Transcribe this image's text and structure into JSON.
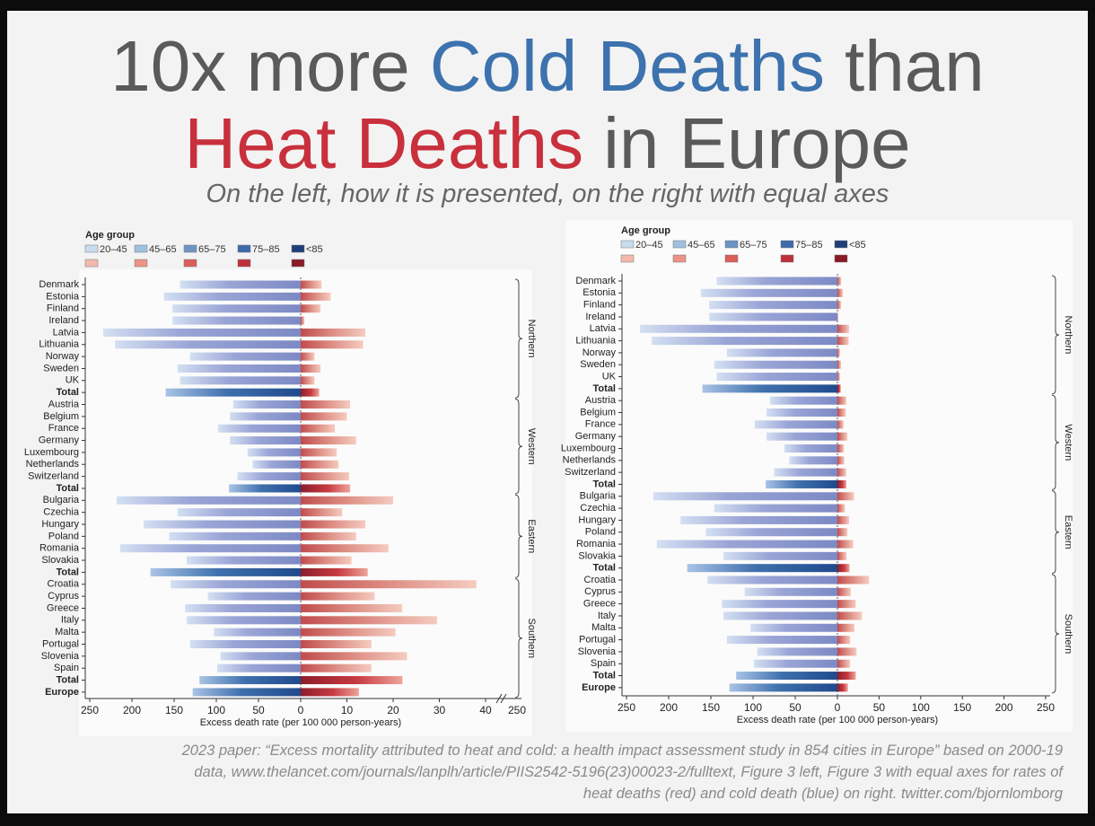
{
  "header": {
    "title_line1": [
      "10x more",
      "Cold Deaths",
      "than"
    ],
    "title_line2": [
      "Heat Deaths",
      "in Europe"
    ],
    "subtitle": "On the left, how it is presented, on the right with equal axes"
  },
  "footer": {
    "lines": [
      "2023 paper: “Excess mortality attributed to heat and cold: a health impact assessment study in 854 cities in Europe” based on 2000-19",
      "data, www.thelancet.com/journals/lanplh/article/PIIS2542-5196(23)00023-2/fulltext, Figure 3 left, Figure 3 with equal axes for rates of",
      "heat deaths (red) and cold death (blue) on right. twitter.com/bjornlomborg"
    ]
  },
  "chart_data": [
    {
      "type": "diverging_bar",
      "legend_title": "Age group",
      "legend_labels": [
        "20–45",
        "45–65",
        "65–75",
        "75–85",
        "<85"
      ],
      "legend_colors_cold": [
        "#c9dcef",
        "#9fc0e0",
        "#6d94c4",
        "#3d6bab",
        "#1f3f7a"
      ],
      "legend_colors_heat": [
        "#f4b9ad",
        "#ec9385",
        "#dc5d5a",
        "#c0303a",
        "#8a1a26"
      ],
      "categories": [
        "Denmark",
        "Estonia",
        "Finland",
        "Ireland",
        "Latvia",
        "Lithuania",
        "Norway",
        "Sweden",
        "UK",
        "Total",
        "Austria",
        "Belgium",
        "France",
        "Germany",
        "Luxembourg",
        "Netherlands",
        "Switzerland",
        "Total",
        "Bulgaria",
        "Czechia",
        "Hungary",
        "Poland",
        "Romania",
        "Slovakia",
        "Total",
        "Croatia",
        "Cyprus",
        "Greece",
        "Italy",
        "Malta",
        "Portugal",
        "Slovenia",
        "Spain",
        "Total",
        "Europe"
      ],
      "cold": [
        143,
        162,
        152,
        152,
        234,
        220,
        131,
        146,
        143,
        160,
        80,
        84,
        98,
        84,
        63,
        57,
        75,
        85,
        218,
        146,
        186,
        156,
        214,
        135,
        178,
        154,
        110,
        137,
        135,
        103,
        131,
        95,
        99,
        120,
        128
      ],
      "heat": [
        4.5,
        6.5,
        4.3,
        0.8,
        14,
        13.5,
        3,
        4.3,
        3,
        4,
        10.7,
        10,
        7.4,
        12,
        7.8,
        8.2,
        10.5,
        10.7,
        20,
        9,
        14,
        12,
        19,
        11,
        14.5,
        38,
        16,
        22,
        29.5,
        20.5,
        15.3,
        23,
        15.3,
        22,
        12.6
      ],
      "cold_xlim": [
        250,
        0
      ],
      "cold_xticks": [
        250,
        200,
        150,
        100,
        50,
        0
      ],
      "heat_xlim": [
        0,
        40
      ],
      "heat_xticks": [
        10,
        20,
        30,
        40
      ],
      "break_tick": 250,
      "xlabel": "Excess death rate (per 100 000 person-years)",
      "group_labels": [
        "Northern",
        "Western",
        "Eastern",
        "Southern"
      ]
    },
    {
      "type": "diverging_bar",
      "legend_title": "Age group",
      "legend_labels": [
        "20–45",
        "45–65",
        "65–75",
        "75–85",
        "<85"
      ],
      "legend_colors_cold": [
        "#c9dcef",
        "#9fc0e0",
        "#6d94c4",
        "#3d6bab",
        "#1f3f7a"
      ],
      "legend_colors_heat": [
        "#f4b9ad",
        "#ec9385",
        "#dc5d5a",
        "#c0303a",
        "#8a1a26"
      ],
      "categories": [
        "Denmark",
        "Estonia",
        "Finland",
        "Ireland",
        "Latvia",
        "Lithuania",
        "Norway",
        "Sweden",
        "UK",
        "Total",
        "Austria",
        "Belgium",
        "France",
        "Germany",
        "Luxembourg",
        "Netherlands",
        "Switzerland",
        "Total",
        "Bulgaria",
        "Czechia",
        "Hungary",
        "Poland",
        "Romania",
        "Slovakia",
        "Total",
        "Croatia",
        "Cyprus",
        "Greece",
        "Italy",
        "Malta",
        "Portugal",
        "Slovenia",
        "Spain",
        "Total",
        "Europe"
      ],
      "cold": [
        143,
        162,
        152,
        152,
        234,
        220,
        131,
        146,
        143,
        160,
        80,
        84,
        98,
        84,
        63,
        57,
        75,
        85,
        218,
        146,
        186,
        156,
        214,
        135,
        178,
        154,
        110,
        137,
        135,
        103,
        131,
        95,
        99,
        120,
        128
      ],
      "heat": [
        4.5,
        6.5,
        4.3,
        0.8,
        14,
        13.5,
        3,
        4.3,
        3,
        4,
        10.7,
        10,
        7.4,
        12,
        7.8,
        8.2,
        10.5,
        10.7,
        20,
        9,
        14,
        12,
        19,
        11,
        14.5,
        38,
        16,
        22,
        29.5,
        20.5,
        15.3,
        23,
        15.3,
        22,
        12.6
      ],
      "cold_xlim": [
        250,
        0
      ],
      "cold_xticks": [
        250,
        200,
        150,
        100,
        50,
        0
      ],
      "heat_xlim": [
        0,
        250
      ],
      "heat_xticks": [
        50,
        100,
        150,
        200,
        250
      ],
      "xlabel": "Excess death rate (per 100 000 person-years)",
      "group_labels": [
        "Northern",
        "Western",
        "Eastern",
        "Southern"
      ]
    }
  ]
}
